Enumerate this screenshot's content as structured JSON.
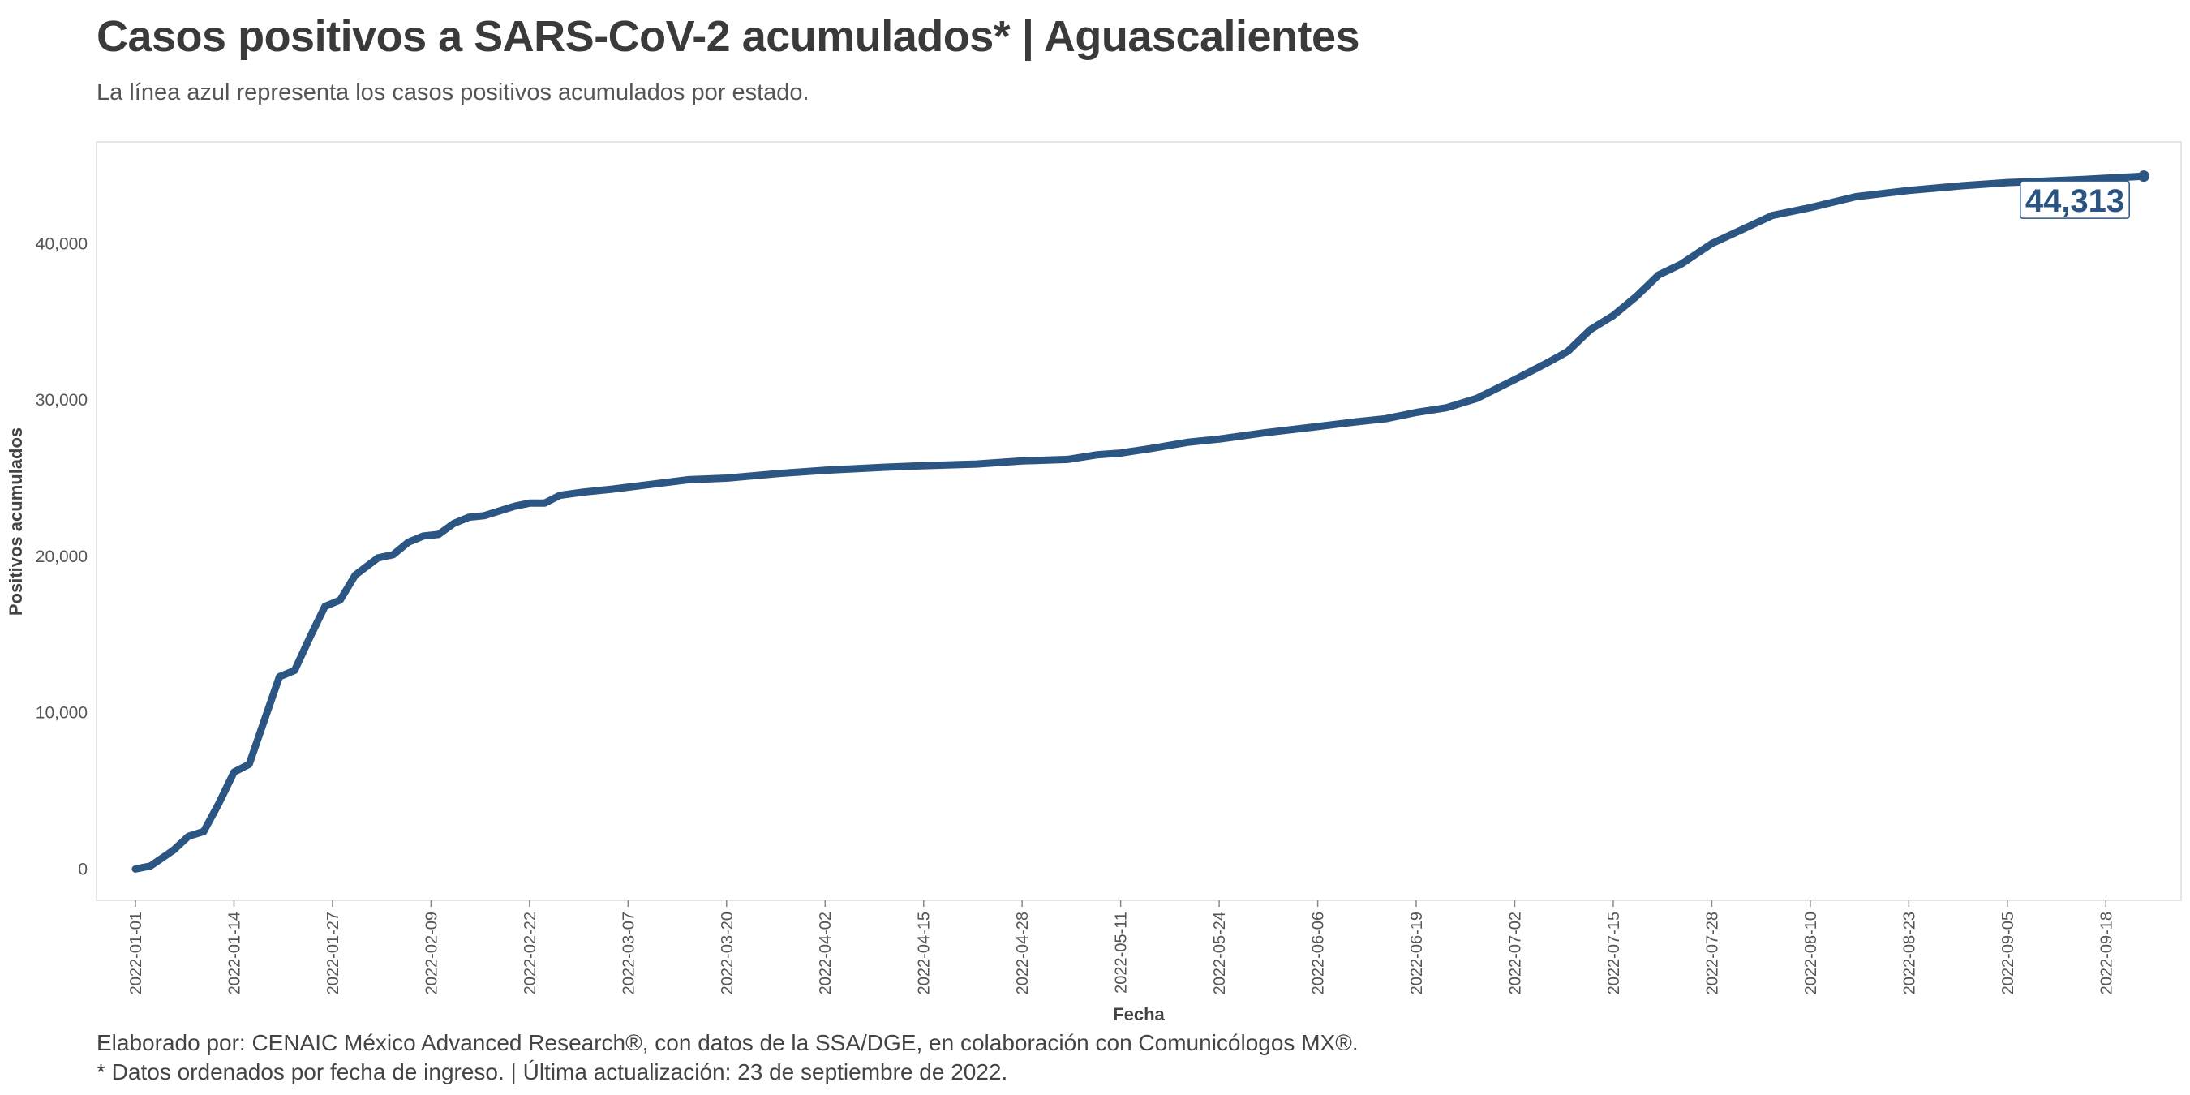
{
  "header": {
    "title": "Casos positivos a SARS-CoV-2 acumulados* | Aguascalientes",
    "subtitle": "La línea azul representa los casos positivos acumulados por estado."
  },
  "footer": {
    "line1": "Elaborado por: CENAIC México Advanced Research®, con datos de la SSA/DGE, en colaboración con Comunicólogos MX®.",
    "line2": "* Datos ordenados por fecha de ingreso. | Última actualización: 23 de septiembre de 2022."
  },
  "colors": {
    "line": "#2b5583",
    "panel_border": "#e6e6e6"
  },
  "chart_data": {
    "type": "line",
    "xlabel": "Fecha",
    "ylabel": "Positivos acumulados",
    "x_ticks": [
      "2022-01-01",
      "2022-01-14",
      "2022-01-27",
      "2022-02-09",
      "2022-02-22",
      "2022-03-07",
      "2022-03-20",
      "2022-04-02",
      "2022-04-15",
      "2022-04-28",
      "2022-05-11",
      "2022-05-24",
      "2022-06-06",
      "2022-06-19",
      "2022-07-02",
      "2022-07-15",
      "2022-07-28",
      "2022-08-10",
      "2022-08-23",
      "2022-09-05",
      "2022-09-18"
    ],
    "y_ticks": [
      0,
      10000,
      20000,
      30000,
      40000
    ],
    "y_tick_labels": [
      "0",
      "10,000",
      "20,000",
      "30,000",
      "40,000"
    ],
    "xlim": [
      "2022-01-01",
      "2022-09-23"
    ],
    "ylim": [
      -2000,
      46500
    ],
    "grid": false,
    "end_label": "44,313",
    "series": [
      {
        "points": [
          [
            "2022-01-01",
            0
          ],
          [
            "2022-01-03",
            200
          ],
          [
            "2022-01-06",
            1200
          ],
          [
            "2022-01-08",
            2100
          ],
          [
            "2022-01-10",
            2400
          ],
          [
            "2022-01-12",
            4200
          ],
          [
            "2022-01-14",
            6200
          ],
          [
            "2022-01-16",
            6700
          ],
          [
            "2022-01-18",
            9500
          ],
          [
            "2022-01-20",
            12300
          ],
          [
            "2022-01-22",
            12700
          ],
          [
            "2022-01-24",
            14800
          ],
          [
            "2022-01-26",
            16800
          ],
          [
            "2022-01-28",
            17200
          ],
          [
            "2022-01-30",
            18800
          ],
          [
            "2022-02-02",
            19900
          ],
          [
            "2022-02-04",
            20100
          ],
          [
            "2022-02-06",
            20900
          ],
          [
            "2022-02-08",
            21300
          ],
          [
            "2022-02-10",
            21400
          ],
          [
            "2022-02-12",
            22100
          ],
          [
            "2022-02-14",
            22500
          ],
          [
            "2022-02-16",
            22600
          ],
          [
            "2022-02-20",
            23200
          ],
          [
            "2022-02-22",
            23400
          ],
          [
            "2022-02-24",
            23400
          ],
          [
            "2022-02-26",
            23900
          ],
          [
            "2022-03-01",
            24100
          ],
          [
            "2022-03-05",
            24300
          ],
          [
            "2022-03-10",
            24600
          ],
          [
            "2022-03-15",
            24900
          ],
          [
            "2022-03-20",
            25000
          ],
          [
            "2022-03-27",
            25300
          ],
          [
            "2022-04-02",
            25500
          ],
          [
            "2022-04-10",
            25700
          ],
          [
            "2022-04-15",
            25800
          ],
          [
            "2022-04-22",
            25900
          ],
          [
            "2022-04-28",
            26100
          ],
          [
            "2022-05-04",
            26200
          ],
          [
            "2022-05-08",
            26500
          ],
          [
            "2022-05-11",
            26600
          ],
          [
            "2022-05-15",
            26900
          ],
          [
            "2022-05-20",
            27300
          ],
          [
            "2022-05-24",
            27500
          ],
          [
            "2022-05-30",
            27900
          ],
          [
            "2022-06-06",
            28300
          ],
          [
            "2022-06-11",
            28600
          ],
          [
            "2022-06-15",
            28800
          ],
          [
            "2022-06-19",
            29200
          ],
          [
            "2022-06-23",
            29500
          ],
          [
            "2022-06-27",
            30100
          ],
          [
            "2022-07-02",
            31300
          ],
          [
            "2022-07-06",
            32300
          ],
          [
            "2022-07-09",
            33100
          ],
          [
            "2022-07-12",
            34500
          ],
          [
            "2022-07-15",
            35400
          ],
          [
            "2022-07-18",
            36600
          ],
          [
            "2022-07-21",
            38000
          ],
          [
            "2022-07-24",
            38700
          ],
          [
            "2022-07-28",
            40000
          ],
          [
            "2022-08-01",
            40900
          ],
          [
            "2022-08-05",
            41800
          ],
          [
            "2022-08-10",
            42300
          ],
          [
            "2022-08-16",
            43000
          ],
          [
            "2022-08-23",
            43400
          ],
          [
            "2022-08-30",
            43700
          ],
          [
            "2022-09-05",
            43900
          ],
          [
            "2022-09-10",
            44000
          ],
          [
            "2022-09-15",
            44100
          ],
          [
            "2022-09-19",
            44200
          ],
          [
            "2022-09-23",
            44313
          ]
        ]
      }
    ]
  }
}
